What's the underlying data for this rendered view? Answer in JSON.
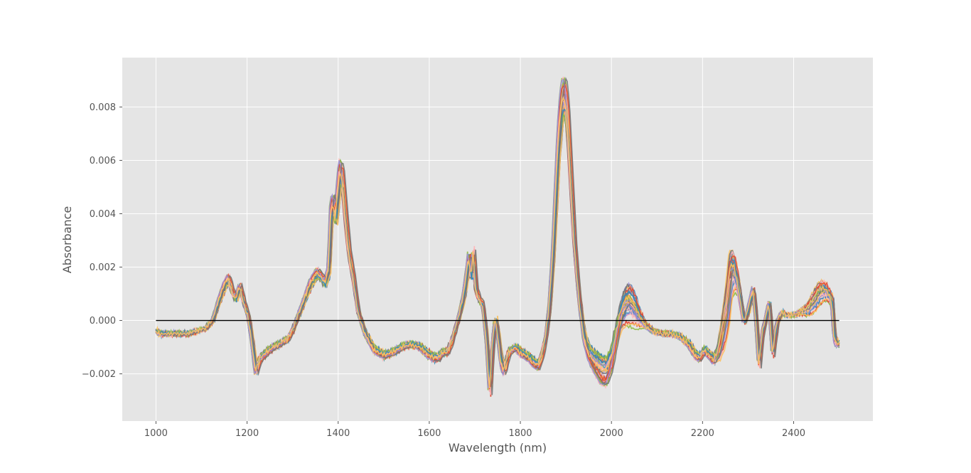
{
  "chart_data": {
    "type": "line",
    "title": "",
    "xlabel": "Wavelength (nm)",
    "ylabel": "Absorbance",
    "xlim": [
      926,
      2574
    ],
    "ylim": [
      -0.00377,
      0.00985
    ],
    "x_ticks": [
      1000,
      1200,
      1400,
      1600,
      1800,
      2000,
      2200,
      2400
    ],
    "x_tick_labels": [
      "1000",
      "1200",
      "1400",
      "1600",
      "1800",
      "2000",
      "2200",
      "2400"
    ],
    "y_ticks": [
      -0.002,
      0.0,
      0.002,
      0.004,
      0.006,
      0.008
    ],
    "y_tick_labels": [
      "−0.002",
      "0.000",
      "0.002",
      "0.004",
      "0.006",
      "0.008"
    ],
    "grid": true,
    "background": "#e5e5e5",
    "grid_color": "#ffffff",
    "baseline": {
      "y": 0.0,
      "x_range": [
        1000,
        2500
      ],
      "color": "#000000"
    },
    "series_colors": [
      "#e24a33",
      "#348abd",
      "#988ed5",
      "#777777",
      "#fbc15e",
      "#8eba42",
      "#ffb5b8"
    ],
    "mean_spectrum": {
      "x": [
        1000,
        1010,
        1030,
        1050,
        1070,
        1090,
        1110,
        1125,
        1140,
        1150,
        1160,
        1168,
        1176,
        1185,
        1195,
        1203,
        1210,
        1220,
        1230,
        1250,
        1270,
        1290,
        1300,
        1320,
        1340,
        1355,
        1365,
        1372,
        1380,
        1385,
        1390,
        1395,
        1400,
        1405,
        1410,
        1418,
        1425,
        1435,
        1445,
        1460,
        1480,
        1500,
        1520,
        1540,
        1560,
        1580,
        1600,
        1610,
        1620,
        1630,
        1640,
        1650,
        1660,
        1668,
        1675,
        1682,
        1688,
        1693,
        1698,
        1703,
        1710,
        1718,
        1726,
        1734,
        1740,
        1746,
        1752,
        1758,
        1765,
        1775,
        1790,
        1800,
        1810,
        1820,
        1830,
        1840,
        1848,
        1856,
        1864,
        1872,
        1878,
        1884,
        1890,
        1895,
        1900,
        1906,
        1912,
        1920,
        1930,
        1940,
        1950,
        1960,
        1970,
        1980,
        1990,
        2000,
        2010,
        2020,
        2030,
        2040,
        2050,
        2060,
        2075,
        2090,
        2110,
        2130,
        2150,
        2170,
        2185,
        2195,
        2205,
        2215,
        2225,
        2235,
        2245,
        2255,
        2262,
        2270,
        2278,
        2285,
        2292,
        2298,
        2305,
        2312,
        2318,
        2325,
        2332,
        2340,
        2347,
        2355,
        2365,
        2375,
        2385,
        2400,
        2415,
        2430,
        2445,
        2455,
        2465,
        2475,
        2485,
        2490,
        2495,
        2500
      ],
      "y": [
        -0.0004,
        -0.0005,
        -0.0005,
        -0.0005,
        -0.0005,
        -0.0004,
        -0.0003,
        0.0,
        0.0008,
        0.0013,
        0.0016,
        0.0011,
        0.0008,
        0.0013,
        0.0006,
        0.0002,
        -0.0006,
        -0.0019,
        -0.0014,
        -0.0011,
        -0.0009,
        -0.0007,
        -0.0004,
        0.0005,
        0.0014,
        0.0018,
        0.0016,
        0.0014,
        0.0019,
        0.0041,
        0.0044,
        0.0038,
        0.0048,
        0.0056,
        0.0053,
        0.0037,
        0.0025,
        0.0015,
        0.0003,
        -0.0005,
        -0.0011,
        -0.0013,
        -0.0012,
        -0.001,
        -0.0009,
        -0.001,
        -0.0013,
        -0.0014,
        -0.0014,
        -0.0012,
        -0.0012,
        -0.0008,
        -0.0002,
        0.0003,
        0.0008,
        0.0016,
        0.0024,
        0.0016,
        0.0026,
        0.0012,
        0.0008,
        0.0006,
        -0.0006,
        -0.0027,
        -0.0009,
        0.0001,
        -0.0006,
        -0.0015,
        -0.0019,
        -0.0012,
        -0.001,
        -0.0012,
        -0.0013,
        -0.0014,
        -0.0016,
        -0.0017,
        -0.0013,
        -0.0007,
        0.0004,
        0.0024,
        0.0045,
        0.0066,
        0.0079,
        0.0084,
        0.0083,
        0.0071,
        0.0052,
        0.0028,
        0.0008,
        -0.0006,
        -0.0012,
        -0.0015,
        -0.0017,
        -0.0019,
        -0.0019,
        -0.0015,
        -0.0007,
        0.0001,
        0.0005,
        0.0006,
        0.0004,
        0.0001,
        -0.0002,
        -0.0004,
        -0.0005,
        -0.0005,
        -0.0006,
        -0.0009,
        -0.0013,
        -0.0014,
        -0.0011,
        -0.0013,
        -0.0015,
        -0.0012,
        -0.0004,
        0.0006,
        0.0017,
        0.0018,
        0.0013,
        0.0006,
        -0.0001,
        0.0002,
        0.0007,
        0.0012,
        0.0001,
        -0.0017,
        -0.0005,
        0.0001,
        0.0007,
        -0.0013,
        0.0,
        0.0003,
        0.0002,
        0.0002,
        0.0003,
        0.0004,
        0.0007,
        0.001,
        0.0011,
        0.001,
        0.0007,
        -0.0007,
        -0.0009,
        -0.0009
      ]
    },
    "series_count": 40
  }
}
